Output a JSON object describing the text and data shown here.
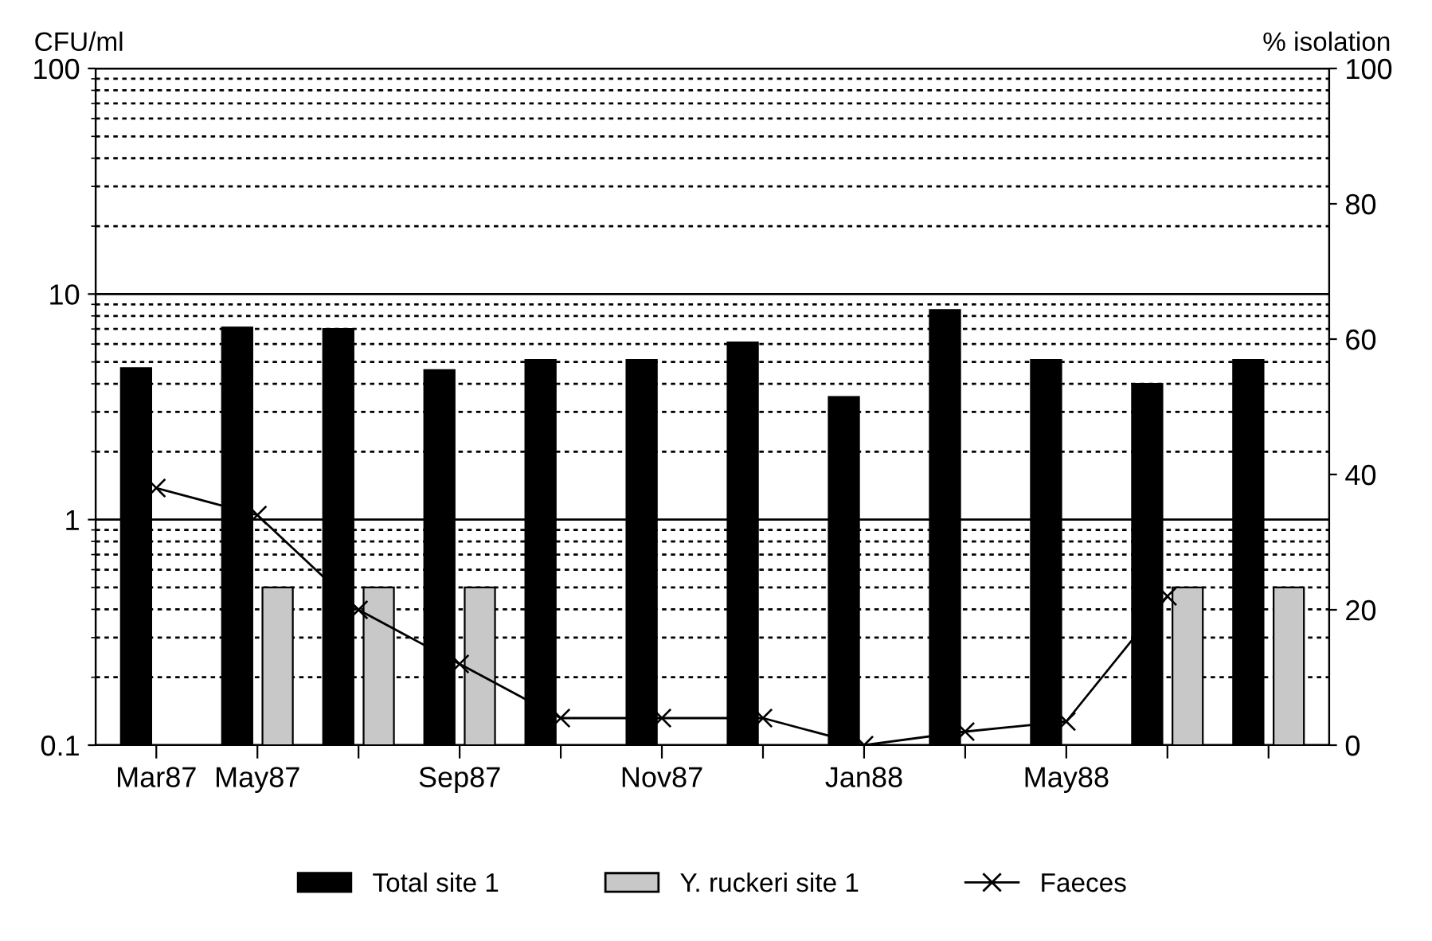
{
  "chart_data": {
    "type": "bar",
    "ylabel": "CFU/ml",
    "y2label": "% isolation",
    "categories": [
      "Mar87",
      "May87",
      null,
      "Sep87",
      null,
      "Nov87",
      null,
      "Jan88",
      null,
      "May88",
      null,
      null
    ],
    "series": [
      {
        "name": "Total site 1",
        "color": "#000000",
        "values": [
          4.7,
          7.1,
          7.0,
          4.6,
          5.1,
          5.1,
          6.1,
          3.5,
          8.5,
          5.1,
          4.0,
          5.1
        ]
      },
      {
        "name": "Y. ruckeri site 1",
        "color": "#c8c8c8",
        "values": [
          null,
          0.5,
          0.5,
          0.5,
          null,
          null,
          null,
          null,
          null,
          null,
          0.5,
          0.5
        ]
      },
      {
        "name": "Faeces",
        "type": "line",
        "axis": "y2",
        "color": "#000000",
        "marker": "cross",
        "values": [
          38,
          34,
          20,
          12,
          4,
          4,
          4,
          0,
          2,
          3.5,
          22,
          null
        ]
      }
    ],
    "log": "y",
    "ylim": [
      0.1,
      100
    ],
    "yticks": [
      0.1,
      1,
      10,
      100
    ],
    "y2lim": [
      0,
      100
    ],
    "y2ticks": [
      0,
      20,
      40,
      60,
      80,
      100
    ],
    "grid": "y",
    "legend": "bottom"
  }
}
